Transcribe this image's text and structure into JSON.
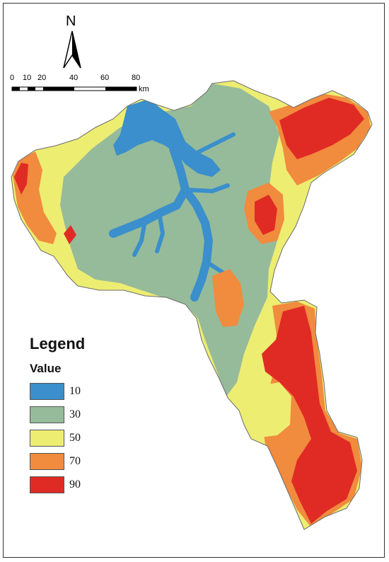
{
  "north": {
    "letter": "N",
    "icon": "north-arrow-icon"
  },
  "scale_bar": {
    "ticks": [
      "0",
      "10",
      "20",
      "40",
      "60",
      "80"
    ],
    "unit": "km"
  },
  "legend": {
    "title": "Legend",
    "subtitle": "Value",
    "items": [
      {
        "label": "10",
        "color": "#3a8fcc"
      },
      {
        "label": "30",
        "color": "#96bb9a"
      },
      {
        "label": "50",
        "color": "#eded72"
      },
      {
        "label": "70",
        "color": "#f18b3e"
      },
      {
        "label": "90",
        "color": "#e02b24"
      }
    ]
  }
}
